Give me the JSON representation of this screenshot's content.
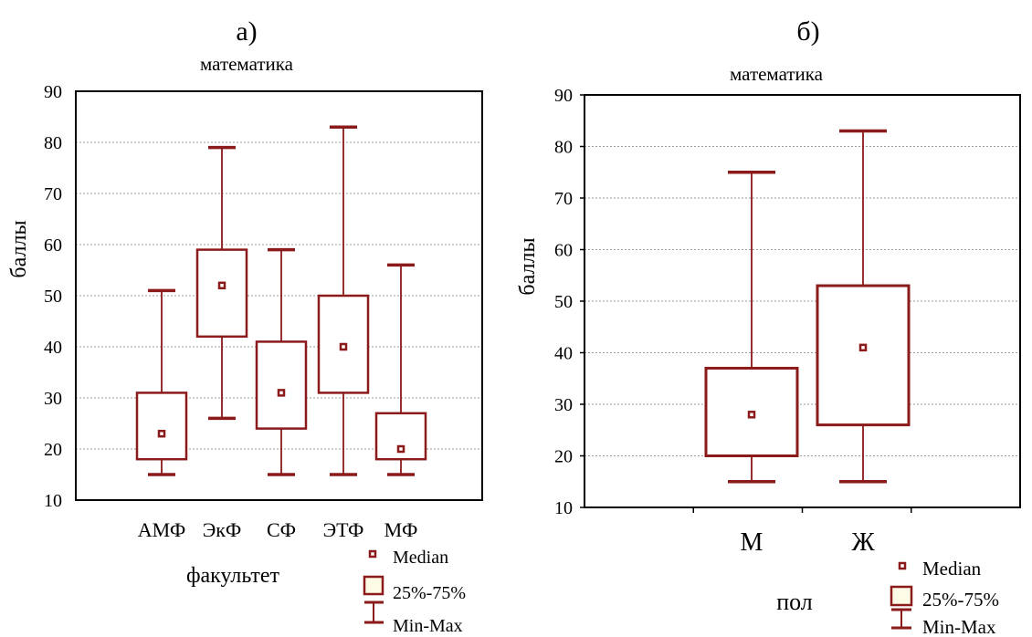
{
  "colors": {
    "box": "#8b1a1a",
    "box_fill": "#fdfbe6",
    "grid": "#9a9a9a",
    "axis": "#000000"
  },
  "chart_data": [
    {
      "type": "boxplot",
      "panel_label": "а)",
      "title": "математика",
      "xlabel": "факультет",
      "ylabel": "баллы",
      "ylim": [
        10,
        90
      ],
      "yticks": [
        10,
        20,
        30,
        40,
        50,
        60,
        70,
        80,
        90
      ],
      "grid": true,
      "categories": [
        "АМФ",
        "ЭкФ",
        "СФ",
        "ЭТФ",
        "МФ"
      ],
      "min": [
        15,
        26,
        15,
        15,
        15
      ],
      "q1": [
        18,
        42,
        24,
        31,
        18
      ],
      "median": [
        23,
        52,
        31,
        40,
        20
      ],
      "q3": [
        31,
        59,
        41,
        50,
        27
      ],
      "max": [
        51,
        79,
        59,
        83,
        56
      ],
      "legend": {
        "median": "Median",
        "box": "25%-75%",
        "whisker": "Min-Max",
        "position": "bottom-right"
      }
    },
    {
      "type": "boxplot",
      "panel_label": "б)",
      "title": "математика",
      "xlabel": "пол",
      "ylabel": "баллы",
      "ylim": [
        10,
        90
      ],
      "yticks": [
        10,
        20,
        30,
        40,
        50,
        60,
        70,
        80,
        90
      ],
      "grid": true,
      "categories": [
        "М",
        "Ж"
      ],
      "min": [
        15,
        15
      ],
      "q1": [
        20,
        26
      ],
      "median": [
        28,
        41
      ],
      "q3": [
        37,
        53
      ],
      "max": [
        75,
        83
      ],
      "legend": {
        "median": "Median",
        "box": "25%-75%",
        "whisker": "Min-Max",
        "position": "bottom-right"
      }
    }
  ]
}
